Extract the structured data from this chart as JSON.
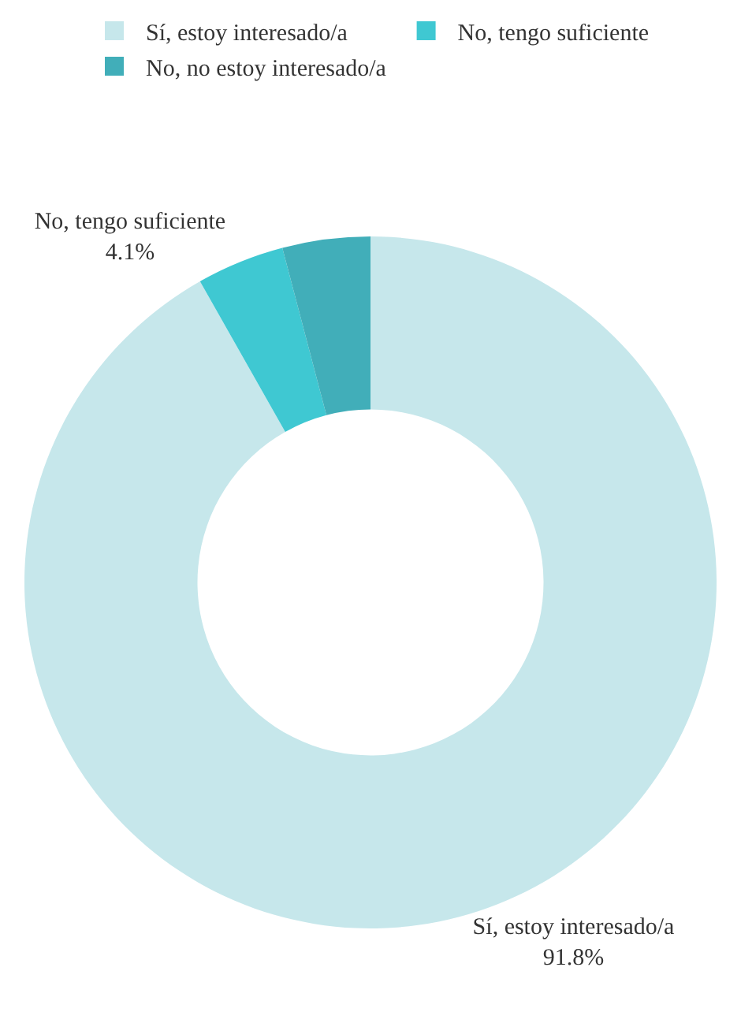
{
  "chart_data": {
    "type": "donut",
    "categories": [
      "Sí, estoy interesado/a",
      "No, tengo suficiente",
      "No, no estoy interesado/a"
    ],
    "values": [
      91.8,
      4.1,
      4.1
    ],
    "colors": [
      "#c6e7eb",
      "#3fc8d2",
      "#41aeb9"
    ],
    "value_labels": [
      "91.8%",
      "4.1%",
      null
    ],
    "legend": "top"
  }
}
